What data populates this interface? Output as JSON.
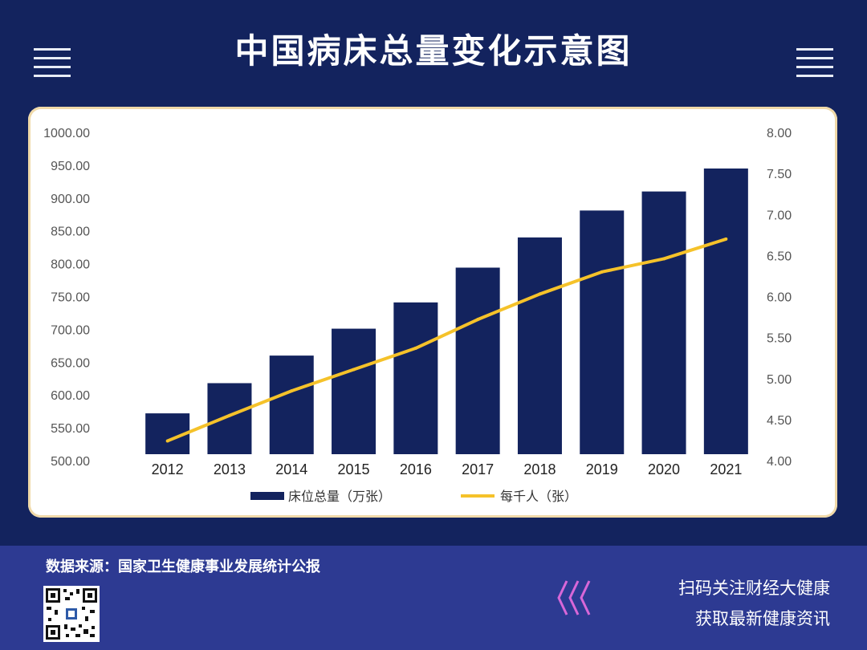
{
  "header": {
    "title": "中国病床总量变化示意图"
  },
  "footer": {
    "source": "数据来源：国家卫生健康事业发展统计公报",
    "follow_line1": "扫码关注财经大健康",
    "follow_line2": "获取最新健康资讯",
    "chevron_color": "#d867d8"
  },
  "icons": {
    "menu_left": "menu-lines-icon",
    "menu_right": "menu-lines-icon",
    "chevrons": "triple-chevron-left-icon",
    "qr": "qr-code-icon"
  },
  "chart_data": {
    "type": "bar",
    "title": "",
    "categories": [
      "2012",
      "2013",
      "2014",
      "2015",
      "2016",
      "2017",
      "2018",
      "2019",
      "2020",
      "2021"
    ],
    "series": [
      {
        "name": "床位总量（万张）",
        "type": "bar",
        "axis": "left",
        "color": "#13235e",
        "values": [
          572,
          618,
          660,
          701,
          741,
          794,
          840,
          881,
          910,
          945
        ]
      },
      {
        "name": "每千人（张）",
        "type": "line",
        "axis": "right",
        "color": "#f5c22a",
        "values": [
          4.24,
          4.55,
          4.85,
          5.11,
          5.37,
          5.72,
          6.03,
          6.3,
          6.46,
          6.7
        ]
      }
    ],
    "y_left": {
      "min": 500,
      "max": 1000,
      "ticks": [
        "500.00",
        "550.00",
        "600.00",
        "650.00",
        "700.00",
        "750.00",
        "800.00",
        "850.00",
        "900.00",
        "950.00",
        "1000.00"
      ]
    },
    "y_right": {
      "min": 4,
      "max": 8,
      "ticks": [
        "4.00",
        "4.50",
        "5.00",
        "5.50",
        "6.00",
        "6.50",
        "7.00",
        "7.50",
        "8.00"
      ]
    },
    "grid": false,
    "legend_position": "bottom"
  }
}
